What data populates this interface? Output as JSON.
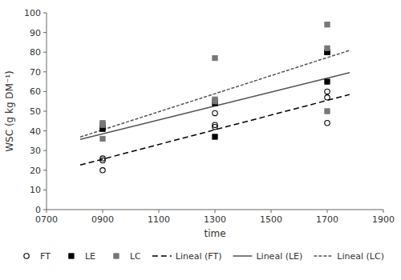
{
  "chart_data": {
    "type": "scatter",
    "title": "",
    "xlabel": "time",
    "ylabel": "WSC (g kg DM⁻¹)",
    "xlim": [
      700,
      1900
    ],
    "ylim": [
      0,
      100
    ],
    "xticks": [
      {
        "value": 700,
        "label": "0700"
      },
      {
        "value": 900,
        "label": "0900"
      },
      {
        "value": 1100,
        "label": "1100"
      },
      {
        "value": 1300,
        "label": "1300"
      },
      {
        "value": 1500,
        "label": "1500"
      },
      {
        "value": 1700,
        "label": "1700"
      },
      {
        "value": 1900,
        "label": "1900"
      }
    ],
    "yticks": [
      0,
      10,
      20,
      30,
      40,
      50,
      60,
      70,
      80,
      90,
      100
    ],
    "grid": false,
    "legend": "bottom",
    "series": [
      {
        "name": "FT",
        "type": "scatter",
        "marker": "open-circle",
        "color": "#000000",
        "x": [
          900,
          900,
          900,
          1300,
          1300,
          1300,
          1700,
          1700,
          1700
        ],
        "values": [
          20,
          25,
          26,
          42,
          43,
          49,
          44,
          57,
          60
        ]
      },
      {
        "name": "LE",
        "type": "scatter",
        "marker": "square",
        "color": "#000000",
        "x": [
          900,
          900,
          900,
          1300,
          1300,
          1300,
          1700,
          1700,
          1700
        ],
        "values": [
          41,
          42,
          43,
          37,
          54,
          55,
          65,
          80,
          80
        ]
      },
      {
        "name": "LC",
        "type": "scatter",
        "marker": "square",
        "color": "#777777",
        "x": [
          900,
          900,
          900,
          1300,
          1300,
          1300,
          1700,
          1700,
          1700
        ],
        "values": [
          36,
          43,
          44,
          55,
          56,
          77,
          50,
          82,
          94
        ]
      },
      {
        "name": "Lineal (FT)",
        "type": "line",
        "line_style": "dashed",
        "color": "#000000",
        "x": [
          820,
          1780
        ],
        "values": [
          22.64636,
          58.48604
        ]
      },
      {
        "name": "Lineal (LE)",
        "type": "line",
        "line_style": "solid",
        "color": "#555555",
        "x": [
          820,
          1780
        ],
        "values": [
          35.6315,
          69.5915
        ]
      },
      {
        "name": "Lineal (LC)",
        "type": "line",
        "line_style": "short-dashed",
        "color": "#555555",
        "x": [
          820,
          1780
        ],
        "values": [
          36.873,
          80.9178
        ]
      }
    ]
  }
}
